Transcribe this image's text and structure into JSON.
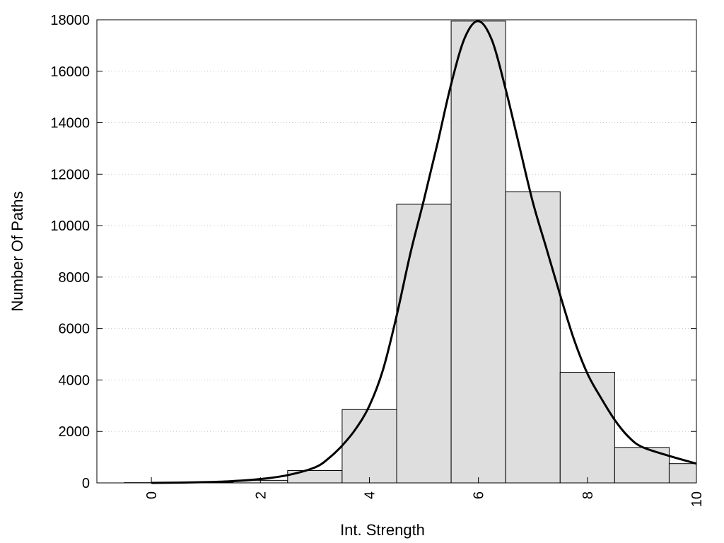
{
  "chart_data": {
    "type": "bar",
    "title": "",
    "xlabel": "Int. Strength",
    "ylabel": "Number Of Paths",
    "xlim": [
      -1,
      10
    ],
    "ylim": [
      0,
      18000
    ],
    "x_ticks": [
      0,
      2,
      4,
      6,
      8,
      10
    ],
    "x_tick_labels": [
      "0",
      "2",
      "4",
      "6",
      "8",
      "10"
    ],
    "y_ticks": [
      0,
      2000,
      4000,
      6000,
      8000,
      10000,
      12000,
      14000,
      16000,
      18000
    ],
    "y_tick_labels": [
      "0",
      "2000",
      "4000",
      "6000",
      "8000",
      "10000",
      "12000",
      "14000",
      "16000",
      "18000"
    ],
    "grid": true,
    "bar_width": 1,
    "bar_color": "#dedede",
    "bars": [
      {
        "x": 0,
        "value": 10
      },
      {
        "x": 1,
        "value": 30
      },
      {
        "x": 2,
        "value": 100
      },
      {
        "x": 3,
        "value": 480
      },
      {
        "x": 4,
        "value": 2850
      },
      {
        "x": 5,
        "value": 10830
      },
      {
        "x": 6,
        "value": 17950
      },
      {
        "x": 7,
        "value": 11320
      },
      {
        "x": 8,
        "value": 4300
      },
      {
        "x": 9,
        "value": 1380
      },
      {
        "x": 10,
        "value": 750
      }
    ],
    "curve": {
      "color": "#000000",
      "x": [
        0,
        0.5,
        1,
        1.5,
        2,
        2.5,
        3,
        3.25,
        3.5,
        3.75,
        4,
        4.25,
        4.5,
        4.75,
        5,
        5.25,
        5.5,
        5.75,
        6,
        6.25,
        6.5,
        6.75,
        7,
        7.25,
        7.5,
        7.75,
        8,
        8.25,
        8.5,
        8.75,
        9,
        9.5,
        10
      ],
      "y": [
        0,
        10,
        30,
        70,
        150,
        300,
        600,
        950,
        1450,
        2100,
        3000,
        4400,
        6500,
        8900,
        11000,
        13200,
        15500,
        17300,
        17950,
        17200,
        15300,
        13100,
        10900,
        9100,
        7300,
        5600,
        4250,
        3300,
        2450,
        1800,
        1400,
        1050,
        750
      ]
    }
  }
}
